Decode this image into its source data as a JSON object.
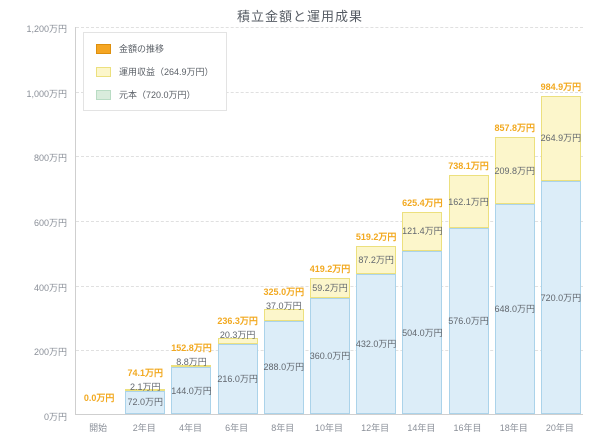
{
  "chart_data": {
    "type": "bar",
    "stacked": true,
    "title": "積立金額と運用成果",
    "grid": true,
    "legend_position": "top-left",
    "categories": [
      "開始",
      "2年目",
      "4年目",
      "6年目",
      "8年目",
      "10年目",
      "12年目",
      "14年目",
      "16年目",
      "18年目",
      "20年目"
    ],
    "series": [
      {
        "name": "元本（720.0万円）",
        "values": [
          0,
          72.0,
          144.0,
          216.0,
          288.0,
          360.0,
          432.0,
          504.0,
          576.0,
          648.0,
          720.0
        ],
        "labels": [
          "",
          "72.0万円",
          "144.0万円",
          "216.0万円",
          "288.0万円",
          "360.0万円",
          "432.0万円",
          "504.0万円",
          "576.0万円",
          "648.0万円",
          "720.0万円"
        ],
        "fill": "#dcedf8",
        "border": "#abd3ea"
      },
      {
        "name": "運用収益（264.9万円）",
        "values": [
          0,
          2.1,
          8.8,
          20.3,
          37.0,
          59.2,
          87.2,
          121.4,
          162.1,
          209.8,
          264.9
        ],
        "labels": [
          "",
          "2.1万円",
          "8.8万円",
          "20.3万円",
          "37.0万円",
          "59.2万円",
          "87.2万円",
          "121.4万円",
          "162.1万円",
          "209.8万円",
          "264.9万円"
        ],
        "fill": "#fcf6cb",
        "border": "#ece07e"
      }
    ],
    "totals": {
      "values": [
        0.0,
        74.1,
        152.8,
        236.3,
        325.0,
        419.2,
        519.2,
        625.4,
        738.1,
        857.8,
        984.9
      ],
      "labels": [
        "0.0万円",
        "74.1万円",
        "152.8万円",
        "236.3万円",
        "325.0万円",
        "419.2万円",
        "519.2万円",
        "625.4万円",
        "738.1万円",
        "857.8万円",
        "984.9万円"
      ],
      "color": "#f2a920"
    },
    "y_axis": {
      "max": 1200,
      "ticks": [
        {
          "value": 1200,
          "label": "1,200万円"
        },
        {
          "value": 1000,
          "label": "1,000万円"
        },
        {
          "value": 800,
          "label": "800万円"
        },
        {
          "value": 600,
          "label": "600万円"
        },
        {
          "value": 400,
          "label": "400万円"
        },
        {
          "value": 200,
          "label": "200万円"
        },
        {
          "value": 0,
          "label": "0万円"
        }
      ]
    },
    "legend": [
      {
        "label": "金額の推移",
        "fill": "#f5a623",
        "border": "#dd8f0e"
      },
      {
        "label": "運用収益（264.9万円）",
        "fill": "#fcf6cb",
        "border": "#ece07e"
      },
      {
        "label": "元本（720.0万円）",
        "fill": "#d9ecdc",
        "border": "#b9dcc4"
      }
    ],
    "colors": {
      "axis_label": "#8a8f98",
      "segment_label": "#62676e",
      "gridline": "#e0e0e0"
    }
  }
}
